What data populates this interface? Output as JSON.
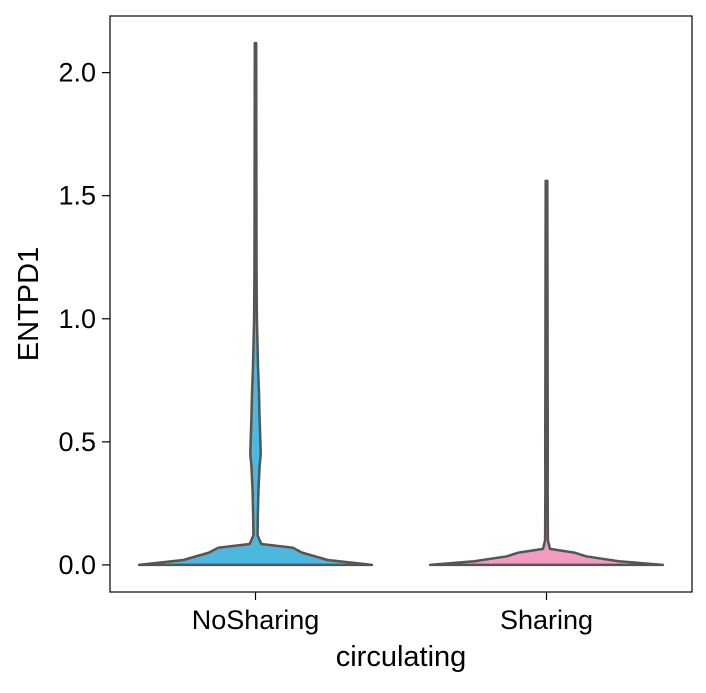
{
  "chart_data": {
    "type": "violin",
    "xlabel": "circulating",
    "ylabel": "ENTPD1",
    "categories": [
      "NoSharing",
      "Sharing"
    ],
    "ylim": [
      -0.11,
      2.23
    ],
    "yticks": [
      0.0,
      0.5,
      1.0,
      1.5,
      2.0
    ],
    "ytick_labels": [
      "0.0",
      "0.5",
      "1.0",
      "1.5",
      "2.0"
    ],
    "grid": false,
    "outline_color": "#555555",
    "series": [
      {
        "category": "NoSharing",
        "color": "#4DB8DE",
        "max": 2.12,
        "density_profile": [
          [
            0.0,
            1.0
          ],
          [
            0.02,
            0.62
          ],
          [
            0.05,
            0.4
          ],
          [
            0.07,
            0.32
          ],
          [
            0.085,
            0.05
          ],
          [
            0.12,
            0.018
          ],
          [
            0.2,
            0.02
          ],
          [
            0.3,
            0.025
          ],
          [
            0.4,
            0.035
          ],
          [
            0.45,
            0.045
          ],
          [
            0.5,
            0.042
          ],
          [
            0.6,
            0.035
          ],
          [
            0.7,
            0.03
          ],
          [
            0.8,
            0.022
          ],
          [
            1.0,
            0.012
          ],
          [
            1.2,
            0.009
          ],
          [
            1.5,
            0.008
          ],
          [
            1.8,
            0.007
          ],
          [
            2.12,
            0.006
          ]
        ]
      },
      {
        "category": "Sharing",
        "color": "#F39BC0",
        "max": 1.56,
        "density_profile": [
          [
            0.0,
            1.0
          ],
          [
            0.015,
            0.62
          ],
          [
            0.035,
            0.34
          ],
          [
            0.05,
            0.24
          ],
          [
            0.065,
            0.03
          ],
          [
            0.1,
            0.012
          ],
          [
            0.3,
            0.01
          ],
          [
            0.5,
            0.011
          ],
          [
            0.7,
            0.01
          ],
          [
            1.0,
            0.009
          ],
          [
            1.3,
            0.008
          ],
          [
            1.56,
            0.007
          ]
        ]
      }
    ]
  }
}
